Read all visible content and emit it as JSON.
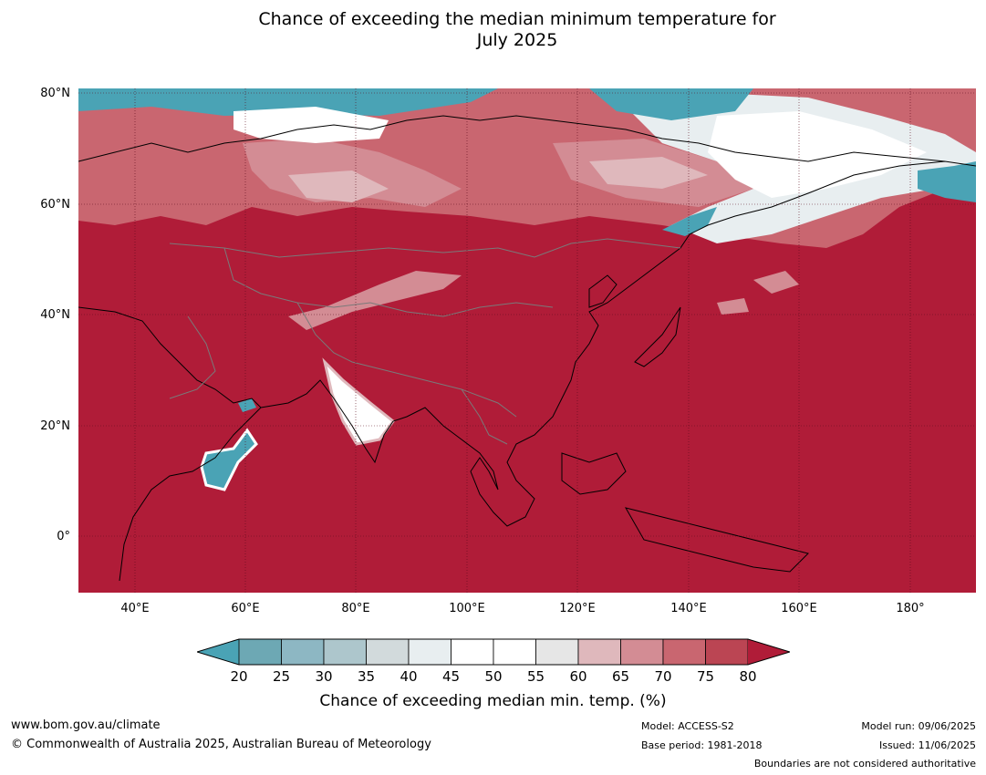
{
  "title_line1": "Chance of exceeding the median minimum temperature for",
  "title_line2": "July 2025",
  "map": {
    "lat_labels": [
      "80°N",
      "60°N",
      "40°N",
      "20°N",
      "0°"
    ],
    "lon_labels": [
      "40°E",
      "60°E",
      "80°E",
      "100°E",
      "120°E",
      "140°E",
      "160°E",
      "180°"
    ],
    "ocean_color": "#b01c38",
    "border_color": "#7a7a7a"
  },
  "colorbar": {
    "ticks": [
      "20",
      "25",
      "30",
      "35",
      "40",
      "45",
      "50",
      "55",
      "60",
      "65",
      "70",
      "75",
      "80"
    ],
    "low_color": "#4aa3b5",
    "high_color": "#b01c38",
    "bins": [
      "#6da8b4",
      "#8db7c3",
      "#adc6cc",
      "#d2dadc",
      "#e8eef0",
      "#ffffff",
      "#ffffff",
      "#e6e6e6",
      "#dfb8bc",
      "#d38c94",
      "#c96670",
      "#bb4553"
    ],
    "label": "Chance of exceeding median min. temp. (%)"
  },
  "footer": {
    "website": "www.bom.gov.au/climate",
    "copyright": "© Commonwealth of Australia 2025, Australian Bureau of Meteorology",
    "model": "Model: ACCESS-S2",
    "base_period": "Base period: 1981-2018",
    "model_run": "Model run: 09/06/2025",
    "issued": "Issued: 11/06/2025",
    "disclaimer": "Boundaries are not considered authoritative"
  }
}
